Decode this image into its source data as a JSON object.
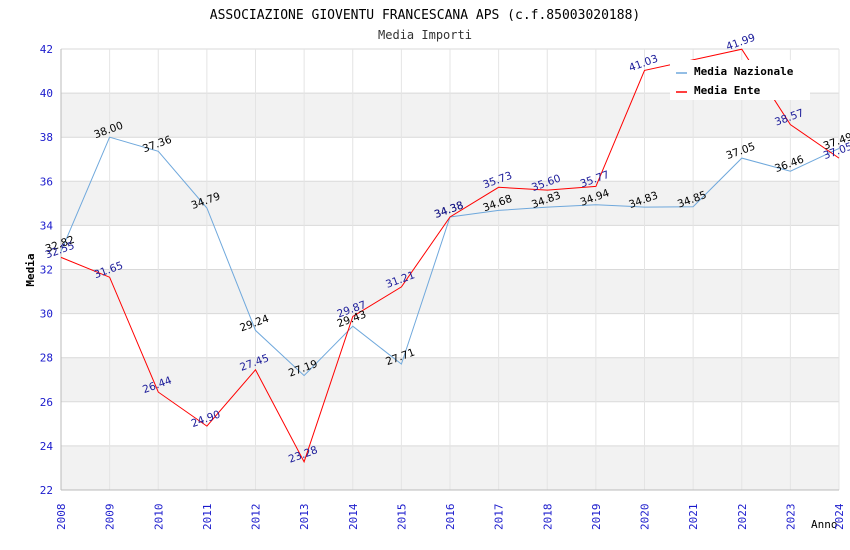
{
  "chart_data": {
    "type": "line",
    "title": "ASSOCIAZIONE GIOVENTU FRANCESCANA APS (c.f.85003020188)",
    "subtitle": "Media Importi",
    "xlabel": "Anno",
    "ylabel": "Media",
    "ylim": [
      22,
      42
    ],
    "yticks": [
      22,
      24,
      26,
      28,
      30,
      32,
      34,
      36,
      38,
      40,
      42
    ],
    "grid": true,
    "legend_position": "top-right",
    "x": [
      "2008",
      "2009",
      "2010",
      "2011",
      "2012",
      "2013",
      "2014",
      "2015",
      "2016",
      "2017",
      "2018",
      "2019",
      "2020",
      "2021",
      "2022",
      "2023",
      "2024"
    ],
    "series": [
      {
        "name": "Media Nazionale",
        "color": "#6fa8dc",
        "label_color": "#000000",
        "values": [
          32.82,
          38.0,
          37.36,
          34.79,
          29.24,
          27.19,
          29.43,
          27.71,
          34.38,
          34.68,
          34.83,
          34.94,
          34.83,
          34.85,
          37.05,
          36.46,
          37.49
        ],
        "labels": [
          "32.82",
          "38.00",
          "37.36",
          "34.79",
          "29.24",
          "27.19",
          "29.43",
          "27.71",
          "34.38",
          "34.68",
          "34.83",
          "34.94",
          "34.83",
          "34.85",
          "37.05",
          "36.46",
          "37.49"
        ]
      },
      {
        "name": "Media Ente",
        "color": "#ff0000",
        "label_color": "#1a1a99",
        "values": [
          32.55,
          31.65,
          26.44,
          24.9,
          27.45,
          23.28,
          29.87,
          31.21,
          34.38,
          35.73,
          35.6,
          35.77,
          41.03,
          null,
          41.99,
          38.57,
          37.05
        ],
        "labels": [
          "32.55",
          "31.65",
          "26.44",
          "24.90",
          "27.45",
          "23.28",
          "29.87",
          "31.21",
          "34.38",
          "35.73",
          "35.60",
          "35.77",
          "41.03",
          "",
          "41.99",
          "38.57",
          "37.05"
        ]
      }
    ]
  }
}
